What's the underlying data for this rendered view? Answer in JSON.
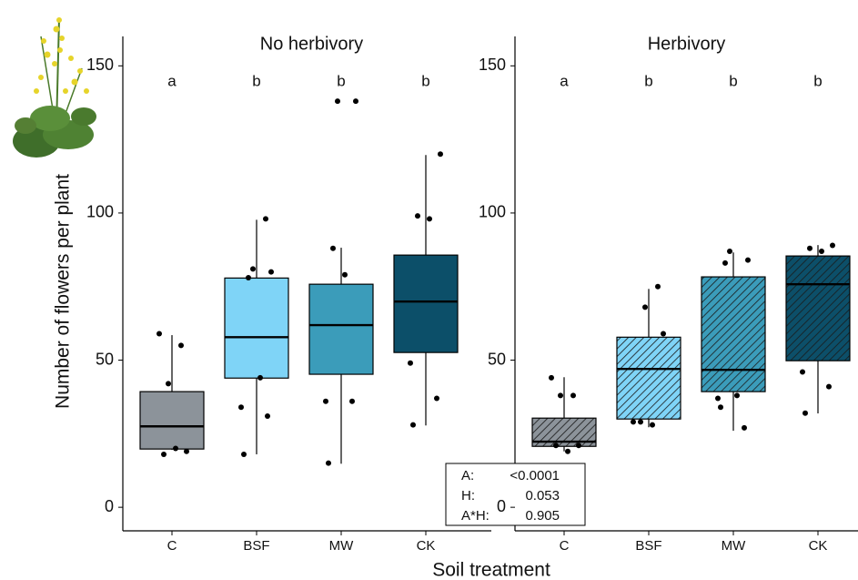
{
  "chart_data": [
    {
      "type": "box",
      "title": "No herbivory",
      "y_label": "Number of flowers per plant",
      "x_label": "Soil treatment",
      "categories": [
        "C",
        "BSF",
        "MW",
        "CK"
      ],
      "letters": [
        "a",
        "b",
        "b",
        "b"
      ],
      "colors": [
        "#8c939a",
        "#7fd4f7",
        "#3b9cba",
        "#0c4f69"
      ],
      "hatch": false,
      "boxes": [
        {
          "whisker_low": 19.5,
          "q1": 19.8,
          "median": 27.5,
          "q3": 39.3,
          "whisker_high": 58.5
        },
        {
          "whisker_low": 18,
          "q1": 43.9,
          "median": 57.8,
          "q3": 77.9,
          "whisker_high": 97.7
        },
        {
          "whisker_low": 14.8,
          "q1": 45.2,
          "median": 61.9,
          "q3": 75.8,
          "whisker_high": 88.2
        },
        {
          "whisker_low": 27.8,
          "q1": 52.6,
          "median": 69.9,
          "q3": 85.7,
          "whisker_high": 119.7
        }
      ],
      "points": [
        [
          59,
          55,
          42,
          19,
          18,
          20
        ],
        [
          98,
          81,
          80,
          78,
          44,
          34,
          31,
          18
        ],
        [
          138,
          138,
          88,
          79,
          36,
          36,
          15
        ],
        [
          120,
          99,
          98,
          49,
          37,
          28
        ]
      ],
      "ylim": [
        -8,
        160
      ],
      "yticks": [
        0,
        50,
        100,
        150
      ]
    },
    {
      "type": "box",
      "title": "Herbivory",
      "categories": [
        "C",
        "BSF",
        "MW",
        "CK"
      ],
      "letters": [
        "a",
        "b",
        "b",
        "b"
      ],
      "colors": [
        "#8c939a",
        "#7fd4f7",
        "#3b9cba",
        "#0c4f69"
      ],
      "hatch": true,
      "boxes": [
        {
          "whisker_low": 19,
          "q1": 20.7,
          "median": 22.3,
          "q3": 30.3,
          "whisker_high": 44.2
        },
        {
          "whisker_low": 27.2,
          "q1": 30,
          "median": 47,
          "q3": 57.8,
          "whisker_high": 74.2
        },
        {
          "whisker_low": 26,
          "q1": 39.3,
          "median": 46.7,
          "q3": 78.3,
          "whisker_high": 86.6
        },
        {
          "whisker_low": 31.9,
          "q1": 49.8,
          "median": 75.8,
          "q3": 85.4,
          "whisker_high": 89.1
        }
      ],
      "points": [
        [
          44,
          38,
          38,
          21,
          21,
          19
        ],
        [
          75,
          68,
          59,
          29,
          28,
          29
        ],
        [
          87,
          84,
          83,
          38,
          37,
          27,
          34
        ],
        [
          89,
          88,
          87,
          46,
          41,
          32
        ]
      ],
      "ylim": [
        -8,
        160
      ],
      "yticks": [
        0,
        50,
        100,
        150
      ]
    }
  ],
  "stats_table": {
    "rows": [
      [
        "A:",
        "<0.0001"
      ],
      [
        "H:",
        "0.053"
      ],
      [
        "A*H:",
        "0.905"
      ]
    ]
  }
}
